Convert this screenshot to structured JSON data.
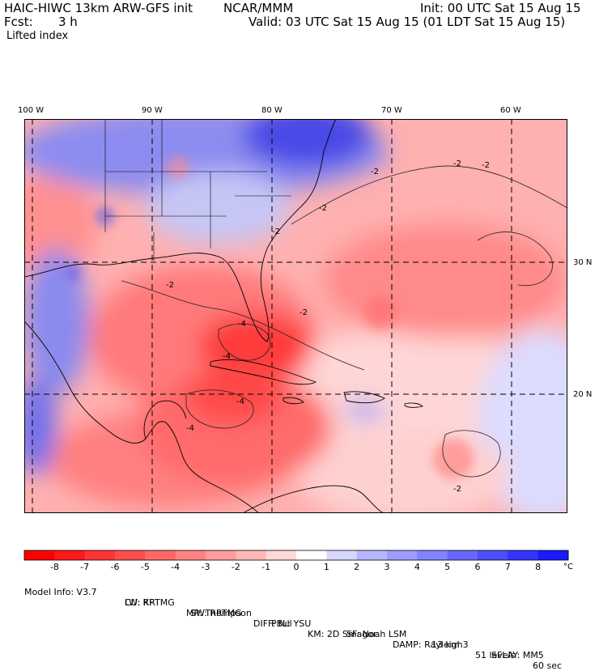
{
  "header": {
    "model_title": "HAIC-HIWC 13km ARW-GFS init",
    "org": "NCAR/MMM",
    "init": "Init: 00 UTC Sat 15 Aug 15",
    "fcst_label": "Fcst:",
    "fcst_value": "3 h",
    "valid": "Valid: 03 UTC Sat 15 Aug 15 (01 LDT Sat 15 Aug 15)",
    "field": "Lifted index"
  },
  "map": {
    "lon_labels": [
      "100 W",
      "90 W",
      "80 W",
      "70 W",
      "60 W"
    ],
    "lon_values": [
      -100,
      -90,
      -80,
      -70,
      -60
    ],
    "lat_labels": [
      "30 N",
      "20 N"
    ],
    "lat_values": [
      30,
      20
    ],
    "contour_labels": [
      "-2",
      "-2",
      "-2",
      "-2",
      "-2",
      "-2",
      "-4",
      "-4",
      "-4",
      "-4",
      "-2",
      "-2"
    ],
    "colors": {
      "strong_neg": "#ff2020",
      "neg": "#ff8080",
      "weak_neg": "#ffc8c8",
      "neutral": "#ffffff",
      "weak_pos": "#c8c8ff",
      "pos": "#7070ff",
      "strong_pos": "#2020ff"
    }
  },
  "colorbar": {
    "labels": [
      "-8",
      "-7",
      "-6",
      "-5",
      "-4",
      "-3",
      "-2",
      "-1",
      "0",
      "1",
      "2",
      "3",
      "4",
      "5",
      "6",
      "7",
      "8"
    ],
    "unit": "°C",
    "colors": [
      "#ff0000",
      "#ff1a1a",
      "#ff3434",
      "#ff4e4e",
      "#ff6868",
      "#ff8282",
      "#ff9c9c",
      "#ffb6b6",
      "#ffd8d8",
      "#ffffff",
      "#d8d8ff",
      "#b6b6ff",
      "#9c9cff",
      "#8282ff",
      "#6868ff",
      "#4e4eff",
      "#3434ff",
      "#1a1aff"
    ]
  },
  "model_info": {
    "line1": [
      "Model Info: V3.7",
      "CU: KF",
      "MP: Thompson",
      "PBL: YSU",
      "SF: Noah LSM",
      "13 km",
      "51 levels",
      "60 sec"
    ],
    "line2": [
      "LW: RRTMG",
      "SW: RRTMG",
      "DIFF: full",
      "KM: 2D Smagor",
      "DAMP: Rayleigh3",
      "SFLAY: MM5"
    ]
  }
}
